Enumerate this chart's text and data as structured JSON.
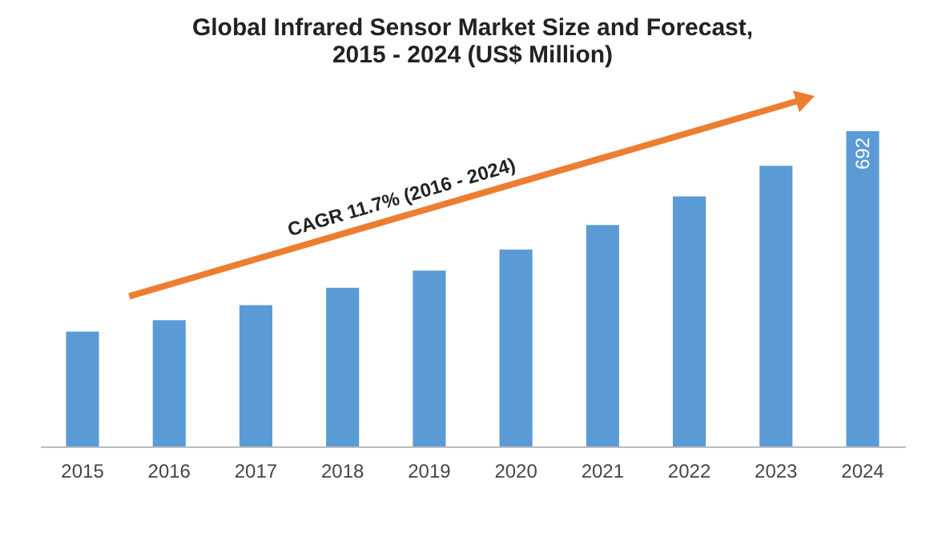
{
  "chart_data": {
    "type": "bar",
    "title": "Global Infrared Sensor Market Size and Forecast, 2015 - 2024 (US$ Million)",
    "categories": [
      "2015",
      "2016",
      "2017",
      "2018",
      "2019",
      "2020",
      "2021",
      "2022",
      "2023",
      "2024"
    ],
    "values": [
      252,
      277,
      310,
      348,
      386,
      432,
      486,
      549,
      616,
      692
    ],
    "value_labels": [
      null,
      null,
      null,
      null,
      null,
      null,
      null,
      null,
      null,
      "692"
    ],
    "color": "#5b9bd5",
    "annotations": [
      "CAGR 11.7% (2016 - 2024)"
    ],
    "grid": false
  }
}
